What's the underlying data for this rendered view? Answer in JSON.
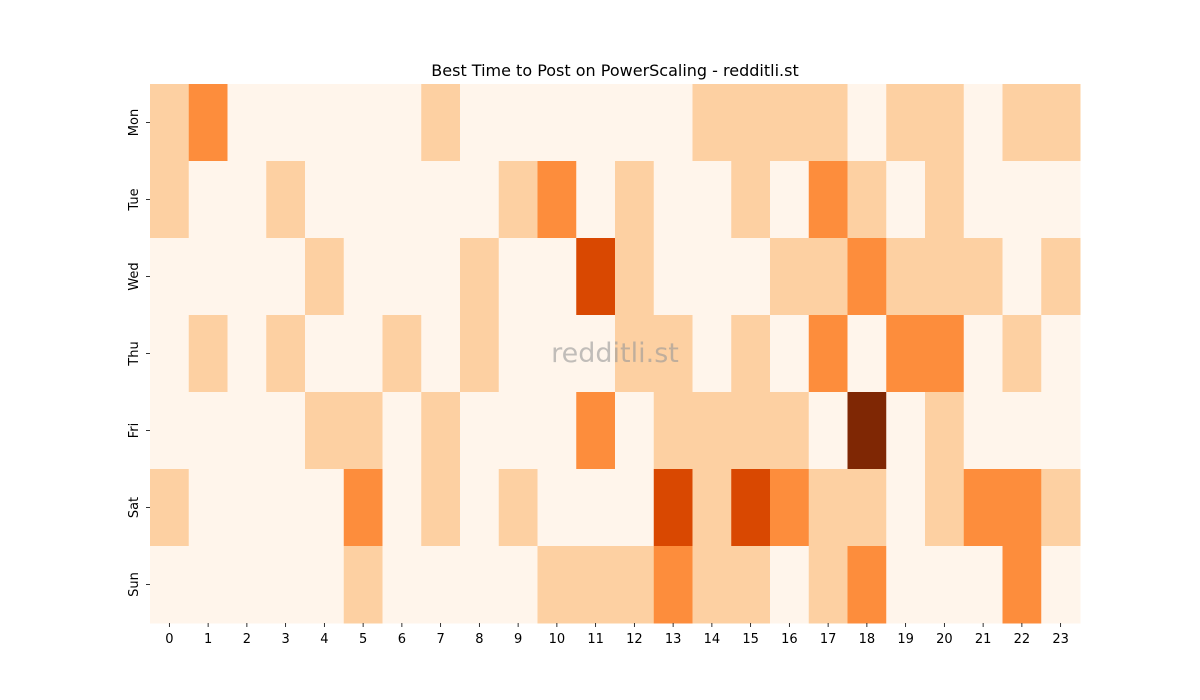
{
  "chart_data": {
    "type": "heatmap",
    "title": "Best Time to Post on PowerScaling - redditli.st",
    "watermark": "redditli.st",
    "xlabel": "",
    "ylabel": "",
    "x_categories": [
      "0",
      "1",
      "2",
      "3",
      "4",
      "5",
      "6",
      "7",
      "8",
      "9",
      "10",
      "11",
      "12",
      "13",
      "14",
      "15",
      "16",
      "17",
      "18",
      "19",
      "20",
      "21",
      "22",
      "23"
    ],
    "y_categories": [
      "Mon",
      "Tue",
      "Wed",
      "Thu",
      "Fri",
      "Sat",
      "Sun"
    ],
    "value_scale_note": "relative intensity levels 0-4 (no colorbar shown)",
    "colormap": [
      "#fff5eb",
      "#fdd0a2",
      "#fd8d3c",
      "#d94801",
      "#7f2704"
    ],
    "values": [
      [
        1,
        2,
        0,
        0,
        0,
        0,
        0,
        1,
        0,
        0,
        0,
        0,
        0,
        0,
        1,
        1,
        1,
        1,
        0,
        1,
        1,
        0,
        1,
        1
      ],
      [
        1,
        0,
        0,
        1,
        0,
        0,
        0,
        0,
        0,
        1,
        2,
        0,
        1,
        0,
        0,
        1,
        0,
        2,
        1,
        0,
        1,
        0,
        0,
        0
      ],
      [
        0,
        0,
        0,
        0,
        1,
        0,
        0,
        0,
        1,
        0,
        0,
        3,
        1,
        0,
        0,
        0,
        1,
        1,
        2,
        1,
        1,
        1,
        0,
        1
      ],
      [
        0,
        1,
        0,
        1,
        0,
        0,
        1,
        0,
        1,
        0,
        0,
        0,
        1,
        1,
        0,
        1,
        0,
        2,
        0,
        2,
        2,
        0,
        1,
        0
      ],
      [
        0,
        0,
        0,
        0,
        1,
        1,
        0,
        1,
        0,
        0,
        0,
        2,
        0,
        1,
        1,
        1,
        1,
        0,
        4,
        0,
        1,
        0,
        0,
        0
      ],
      [
        1,
        0,
        0,
        0,
        0,
        2,
        0,
        1,
        0,
        1,
        0,
        0,
        0,
        3,
        1,
        3,
        2,
        1,
        1,
        0,
        1,
        2,
        2,
        1
      ],
      [
        0,
        0,
        0,
        0,
        0,
        1,
        0,
        0,
        0,
        0,
        1,
        1,
        1,
        2,
        1,
        1,
        0,
        1,
        2,
        0,
        0,
        0,
        2,
        0
      ]
    ]
  }
}
